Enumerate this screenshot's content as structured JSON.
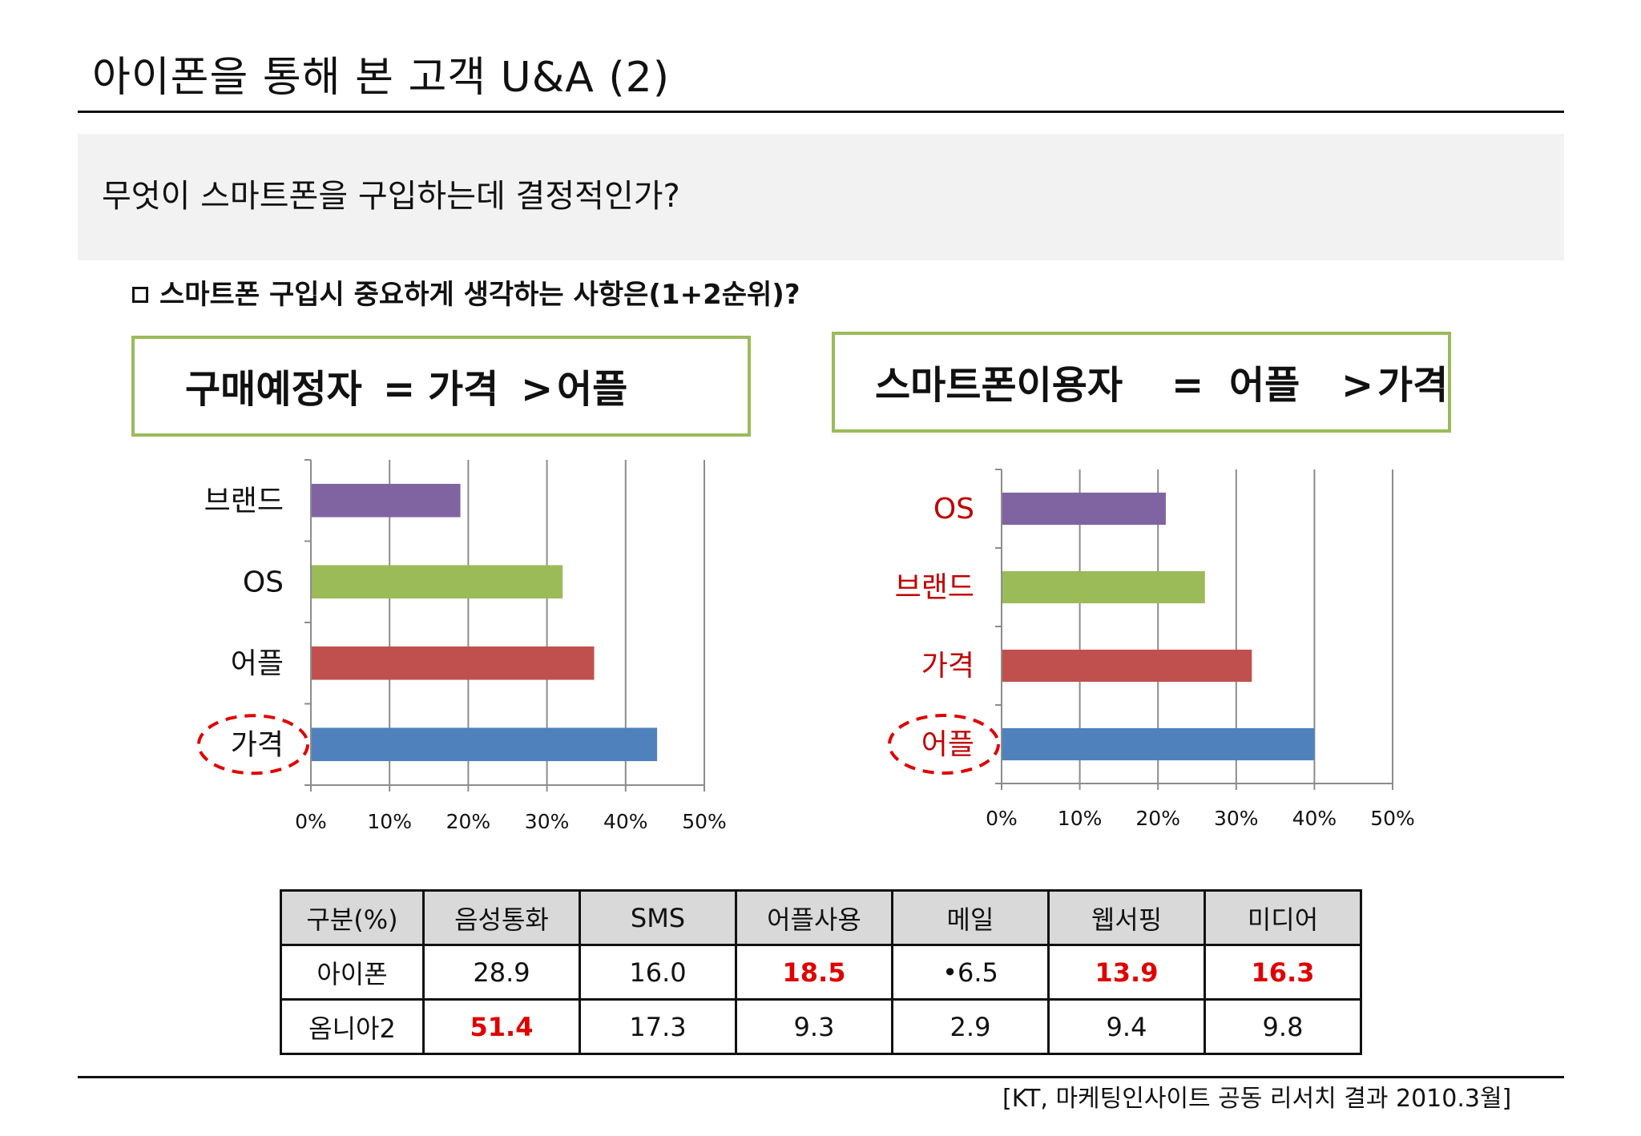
{
  "page": {
    "title": "아이폰을 통해 본 고객 U&A (2)",
    "question": "무엇이 스마트폰을 구입하는데 결정적인가?",
    "subheading": "스마트폰 구입시 중요하게 생각하는 사항은(1+2순위)?",
    "source": "[KT, 마케팅인사이트 공동 리서치 결과 2010.3월]"
  },
  "callouts": {
    "left": {
      "group": "구매예정자",
      "eq": "=",
      "first": "가격",
      "gt": ">",
      "second": "어플"
    },
    "right": {
      "group": "스마트폰이용자",
      "eq": "=",
      "first": "어플",
      "gt": ">",
      "second": "가격"
    }
  },
  "colors": {
    "purple": "#8064a2",
    "green": "#9bbb59",
    "red": "#c0504d",
    "blue": "#4f81bd",
    "highlight": "#e00000",
    "callout_border": "#9bbb59"
  },
  "chart_data": [
    {
      "type": "bar",
      "orientation": "horizontal",
      "categories": [
        "브랜드",
        "OS",
        "어플",
        "가격"
      ],
      "values": [
        19,
        32,
        36,
        44
      ],
      "bar_colors": [
        "#8064a2",
        "#9bbb59",
        "#c0504d",
        "#4f81bd"
      ],
      "label_color": "#111111",
      "circled_category": "가격",
      "xlim": [
        0,
        50
      ],
      "xticks": [
        "0%",
        "10%",
        "20%",
        "30%",
        "40%",
        "50%"
      ],
      "grid": true
    },
    {
      "type": "bar",
      "orientation": "horizontal",
      "categories": [
        "OS",
        "브랜드",
        "가격",
        "어플"
      ],
      "values": [
        21,
        26,
        32,
        40
      ],
      "bar_colors": [
        "#8064a2",
        "#9bbb59",
        "#c0504d",
        "#4f81bd"
      ],
      "label_color": "#c00000",
      "circled_category": "어플",
      "xlim": [
        0,
        50
      ],
      "xticks": [
        "0%",
        "10%",
        "20%",
        "30%",
        "40%",
        "50%"
      ],
      "grid": true
    }
  ],
  "table": {
    "headers": [
      "구분(%)",
      "음성통화",
      "SMS",
      "어플사용",
      "메일",
      "웹서핑",
      "미디어"
    ],
    "rows": [
      {
        "label": "아이폰",
        "cells": [
          "28.9",
          "16.0",
          "18.5",
          "•6.5",
          "13.9",
          "16.3"
        ],
        "highlight": [
          false,
          false,
          true,
          false,
          true,
          true
        ]
      },
      {
        "label": "옴니아2",
        "cells": [
          "51.4",
          "17.3",
          "9.3",
          "2.9",
          "9.4",
          "9.8"
        ],
        "highlight": [
          true,
          false,
          false,
          false,
          false,
          false
        ]
      }
    ]
  }
}
